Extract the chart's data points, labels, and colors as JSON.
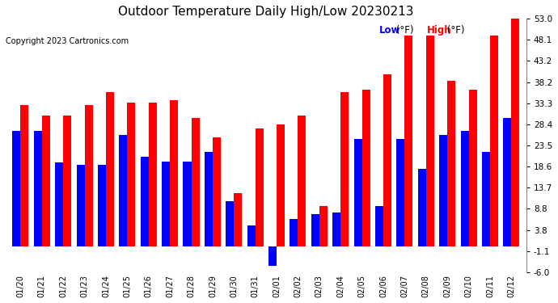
{
  "title": "Outdoor Temperature Daily High/Low 20230213",
  "copyright": "Copyright 2023 Cartronics.com",
  "legend_low": "Low",
  "legend_high": "High",
  "legend_unit": "(°F)",
  "ylabel_right_ticks": [
    -6.0,
    -1.1,
    3.8,
    8.8,
    13.7,
    18.6,
    23.5,
    28.4,
    33.3,
    38.2,
    43.2,
    48.1,
    53.0
  ],
  "dates": [
    "01/20",
    "01/21",
    "01/22",
    "01/23",
    "01/24",
    "01/25",
    "01/26",
    "01/27",
    "01/28",
    "01/29",
    "01/30",
    "01/31",
    "02/01",
    "02/02",
    "02/03",
    "02/04",
    "02/05",
    "02/06",
    "02/07",
    "02/08",
    "02/09",
    "02/10",
    "02/11",
    "02/12"
  ],
  "highs": [
    33.0,
    30.5,
    30.5,
    33.0,
    36.0,
    33.5,
    33.5,
    34.0,
    30.0,
    25.5,
    12.5,
    27.5,
    28.5,
    30.5,
    9.5,
    36.0,
    36.5,
    40.0,
    49.0,
    49.0,
    38.5,
    36.5,
    49.0,
    53.0
  ],
  "lows": [
    27.0,
    27.0,
    19.5,
    19.0,
    19.0,
    26.0,
    21.0,
    19.8,
    19.8,
    22.0,
    10.5,
    5.0,
    -4.5,
    6.5,
    7.5,
    8.0,
    25.0,
    9.5,
    25.0,
    18.0,
    26.0,
    27.0,
    22.0,
    30.0
  ],
  "bar_color_high": "#FF0000",
  "bar_color_low": "#0000FF",
  "background_color": "#FFFFFF",
  "plot_bg_color": "#FFFFFF",
  "grid_color": "#C0C0C0",
  "title_fontsize": 11,
  "copyright_fontsize": 7,
  "bar_width": 0.38,
  "ylim": [
    -6.0,
    53.0
  ],
  "grid_linestyle": "--"
}
